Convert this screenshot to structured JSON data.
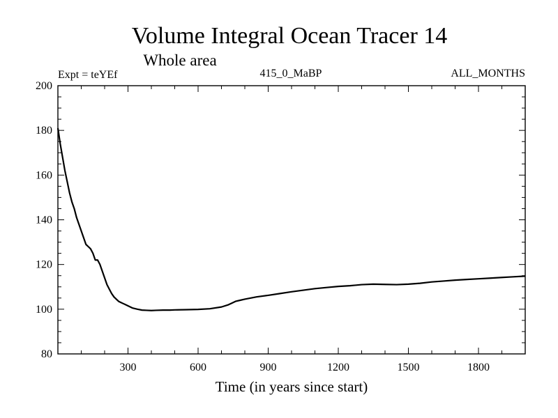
{
  "chart_data": {
    "type": "line",
    "title": "Volume Integral Ocean Tracer 14",
    "subtitle": "Whole area",
    "header_left": "Expt = teYEf",
    "header_center": "415_0_MaBP",
    "header_right": "ALL_MONTHS",
    "xlabel": "Time (in years since start)",
    "ylabel": "",
    "xlim": [
      0,
      2000
    ],
    "ylim": [
      80,
      200
    ],
    "x_ticks": [
      300,
      600,
      900,
      1200,
      1500,
      1800
    ],
    "y_ticks": [
      80,
      100,
      120,
      140,
      160,
      180,
      200
    ],
    "x_minor_step": 100,
    "y_minor_step": 5,
    "series": [
      {
        "name": "Tracer 14",
        "color": "#000000",
        "x": [
          0,
          10,
          20,
          30,
          40,
          50,
          60,
          70,
          80,
          90,
          100,
          110,
          120,
          130,
          140,
          150,
          160,
          170,
          180,
          190,
          200,
          210,
          220,
          230,
          240,
          250,
          260,
          270,
          280,
          290,
          300,
          320,
          340,
          360,
          380,
          400,
          420,
          450,
          480,
          500,
          550,
          600,
          650,
          700,
          730,
          750,
          760,
          780,
          800,
          850,
          900,
          950,
          1000,
          1050,
          1100,
          1150,
          1200,
          1250,
          1300,
          1350,
          1400,
          1450,
          1500,
          1550,
          1600,
          1650,
          1700,
          1750,
          1800,
          1850,
          1900,
          1950,
          2000
        ],
        "values": [
          181,
          174,
          168,
          162,
          157,
          152,
          148,
          145,
          141,
          138,
          135,
          132,
          129,
          128,
          127,
          125,
          122,
          122,
          120,
          117,
          114,
          111,
          109,
          107,
          105.5,
          104.5,
          103.5,
          103,
          102.5,
          102,
          101.5,
          100.5,
          100,
          99.6,
          99.5,
          99.4,
          99.5,
          99.6,
          99.6,
          99.7,
          99.8,
          99.9,
          100.2,
          101,
          102,
          103,
          103.5,
          104,
          104.5,
          105.5,
          106.2,
          107,
          107.8,
          108.5,
          109.2,
          109.7,
          110.2,
          110.5,
          111,
          111.2,
          111.1,
          111,
          111.2,
          111.6,
          112.2,
          112.6,
          113,
          113.3,
          113.6,
          113.9,
          114.2,
          114.5,
          114.8
        ]
      }
    ]
  }
}
